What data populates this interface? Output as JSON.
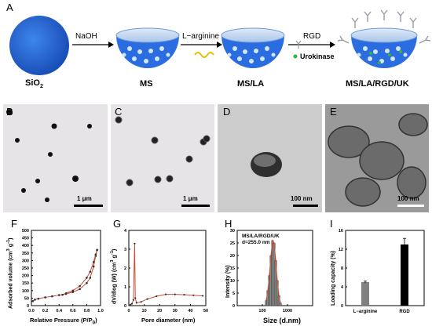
{
  "panel_A": {
    "letter": "A",
    "sio2": "SiO",
    "sio2_sub": "2",
    "ms": "MS",
    "ms_la": "MS/LA",
    "final": "MS/LA/RGD/UK",
    "naoh": "NaOH",
    "larg": "L−arginine",
    "rgd": "RGD",
    "urokinase": "Urokinase",
    "colors": {
      "sphere": "#2563d6",
      "bowl": "#2b6de0",
      "rim": "#cfe0f5",
      "pores": "#cfe6f7",
      "linker": "#e0c200",
      "uk": "#38b23a"
    }
  },
  "micrographs": [
    {
      "letter": "B",
      "scale": "1 μm"
    },
    {
      "letter": "C",
      "scale": "1 μm"
    },
    {
      "letter": "D",
      "scale": "100 nm"
    },
    {
      "letter": "E",
      "scale": "100 nm"
    }
  ],
  "panel_F": {
    "letter": "F",
    "ylabel": "Adsorbed volume (cm",
    "ylabel_sup": "3",
    "ylabel_mid": " g",
    "ylabel_sup2": "-1",
    "ylabel_end": ")",
    "xlabel": "Relative Pressure (P/P",
    "xlabel_sub": "0",
    "xlabel_end": ")"
  },
  "panel_G": {
    "letter": "G",
    "ylabel": "dV/dlog (W) (cm",
    "ylabel_sup": "3",
    "ylabel_mid": " g",
    "ylabel_sup2": "-1",
    "ylabel_end": ")",
    "xlabel": "Pore diameter (nm)"
  },
  "panel_H": {
    "letter": "H",
    "ylabel": "Intensity (%)",
    "xlabel": "Size (d.nm)",
    "legend1": "MS/LA/RGD/UK",
    "legend2": "d=255.0 nm"
  },
  "panel_I": {
    "letter": "I",
    "ylabel": "Loading capacity (%)"
  },
  "chart_data": [
    {
      "type": "line",
      "panel": "F",
      "xlabel": "Relative Pressure (P/P0)",
      "ylabel": "Adsorbed volume (cm3 g-1)",
      "xlim": [
        0.0,
        1.0
      ],
      "ylim": [
        0,
        500
      ],
      "xticks": [
        "0.0",
        "0.2",
        "0.4",
        "0.6",
        "0.8",
        "1.0"
      ],
      "yticks": [
        "0",
        "50",
        "100",
        "150",
        "200",
        "250",
        "300",
        "350",
        "400",
        "450",
        "500"
      ],
      "series": [
        {
          "x": [
            0.02,
            0.05,
            0.1,
            0.2,
            0.3,
            0.4,
            0.5,
            0.6,
            0.7,
            0.8,
            0.85,
            0.9,
            0.93,
            0.95
          ],
          "y": [
            30,
            40,
            46,
            55,
            62,
            70,
            78,
            90,
            110,
            150,
            185,
            260,
            330,
            370
          ]
        },
        {
          "x": [
            0.95,
            0.93,
            0.9,
            0.85,
            0.8,
            0.7,
            0.6,
            0.5,
            0.45
          ],
          "y": [
            370,
            340,
            290,
            225,
            185,
            130,
            100,
            82,
            72
          ]
        }
      ]
    },
    {
      "type": "line",
      "panel": "G",
      "xlabel": "Pore diameter (nm)",
      "ylabel": "dV/dlog (W) (cm3 g-1)",
      "xlim": [
        0,
        50
      ],
      "ylim": [
        0,
        4
      ],
      "xticks": [
        "0",
        "10",
        "20",
        "30",
        "40",
        "50"
      ],
      "yticks": [
        "0",
        "1",
        "2",
        "3",
        "4"
      ],
      "series": [
        {
          "x": [
            1,
            2,
            3,
            3.8,
            4.2,
            5,
            8,
            12,
            18,
            24,
            30,
            36,
            42,
            48
          ],
          "y": [
            0.05,
            0.1,
            0.3,
            3.3,
            0.4,
            0.15,
            0.2,
            0.35,
            0.5,
            0.6,
            0.6,
            0.58,
            0.55,
            0.52
          ]
        }
      ]
    },
    {
      "type": "bar",
      "panel": "H",
      "xlabel": "Size (d.nm)",
      "ylabel": "Intensity (%)",
      "xscale": "log",
      "xlim": [
        10,
        10000
      ],
      "ylim": [
        0,
        30
      ],
      "xticks": [
        "100",
        "1000"
      ],
      "yticks": [
        "0",
        "5",
        "10",
        "15",
        "20",
        "25",
        "30"
      ],
      "x": [
        142,
        164,
        190,
        220,
        255,
        295,
        342,
        396,
        459,
        531
      ],
      "values": [
        2,
        6,
        12,
        20,
        26,
        25,
        18,
        10,
        4,
        1
      ]
    },
    {
      "type": "bar",
      "panel": "I",
      "ylabel": "Loading capacity (%)",
      "ylim": [
        0,
        16
      ],
      "yticks": [
        "0",
        "4",
        "8",
        "12",
        "16"
      ],
      "categories": [
        "L−arginine",
        "RGD"
      ],
      "values": [
        5.0,
        13.0
      ],
      "errors": [
        0.2,
        1.3
      ],
      "colors": [
        "#808080",
        "#000000"
      ]
    }
  ]
}
